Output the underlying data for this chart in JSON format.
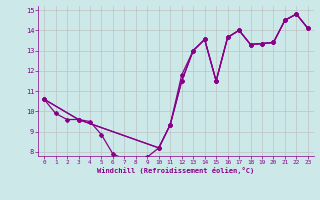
{
  "xlabel": "Windchill (Refroidissement éolien,°C)",
  "xlim": [
    -0.5,
    23.5
  ],
  "ylim": [
    7.8,
    15.2
  ],
  "xticks": [
    0,
    1,
    2,
    3,
    4,
    5,
    6,
    7,
    8,
    9,
    10,
    11,
    12,
    13,
    14,
    15,
    16,
    17,
    18,
    19,
    20,
    21,
    22,
    23
  ],
  "yticks": [
    8,
    9,
    10,
    11,
    12,
    13,
    14,
    15
  ],
  "background_color": "#cce8e8",
  "line_color": "#880088",
  "grid_color": "#bbbbbb",
  "curve1_x": [
    0,
    1,
    2,
    3,
    4,
    5,
    6,
    7,
    8,
    9,
    10,
    11,
    12,
    13,
    14,
    15,
    16,
    17,
    18,
    19,
    20,
    21,
    22,
    23
  ],
  "curve1_y": [
    10.6,
    9.9,
    9.6,
    9.6,
    9.5,
    8.85,
    7.9,
    7.65,
    7.65,
    7.75,
    8.2,
    9.35,
    11.5,
    13.0,
    13.55,
    11.5,
    13.65,
    14.0,
    13.3,
    13.35,
    13.4,
    14.5,
    14.8,
    14.1
  ],
  "curve2_x": [
    0,
    3,
    10,
    11,
    12,
    13,
    14,
    15,
    16,
    17,
    18,
    19,
    20,
    21,
    22,
    23
  ],
  "curve2_y": [
    10.6,
    9.6,
    8.2,
    9.35,
    11.5,
    13.0,
    13.55,
    11.5,
    13.65,
    14.0,
    13.3,
    13.35,
    13.4,
    14.5,
    14.8,
    14.1
  ],
  "curve3_x": [
    0,
    3,
    10,
    11,
    12,
    13,
    14,
    15,
    16,
    17,
    18,
    19,
    20,
    21,
    22,
    23
  ],
  "curve3_y": [
    10.6,
    9.6,
    8.2,
    9.35,
    11.8,
    13.0,
    13.55,
    11.5,
    13.65,
    14.0,
    13.3,
    13.35,
    13.4,
    14.5,
    14.8,
    14.1
  ]
}
